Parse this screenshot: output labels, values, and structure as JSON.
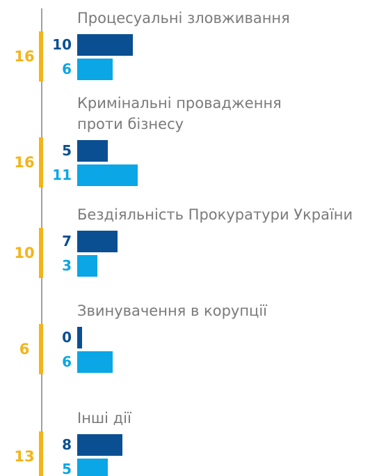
{
  "chart_data": {
    "type": "bar",
    "categories": [
      "Процесуальні зловживання",
      "Кримінальні провадження\nпроти бізнесу",
      "Бездіяльність Прокуратури України",
      "Звинувачення в корупції",
      "Інші дії"
    ],
    "totals": [
      16,
      16,
      10,
      6,
      13
    ],
    "totals_color": "#f4b418",
    "series": [
      {
        "color": "#0b4f93",
        "values": [
          10,
          5,
          7,
          0,
          8
        ]
      },
      {
        "color": "#0aa6e6",
        "values": [
          6,
          11,
          3,
          6,
          5
        ]
      }
    ]
  }
}
